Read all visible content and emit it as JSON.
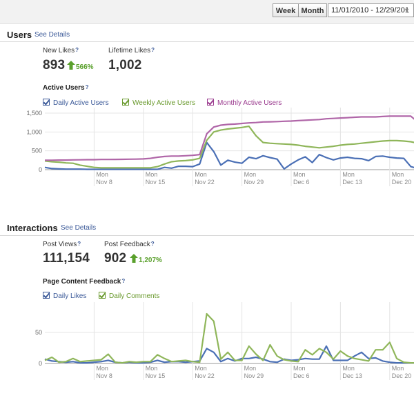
{
  "toolbar": {
    "week_label": "Week",
    "month_label": "Month",
    "date_range": "11/01/2010 - 12/29/201"
  },
  "users": {
    "title": "Users",
    "see_details": "See Details",
    "stats": [
      {
        "label": "New Likes",
        "help": "?",
        "value": "893",
        "change": "566%"
      },
      {
        "label": "Lifetime Likes",
        "help": "?",
        "value": "1,002"
      }
    ],
    "chart_title": "Active Users",
    "chart_help": "?"
  },
  "interactions": {
    "title": "Interactions",
    "see_details": "See Details",
    "stats": [
      {
        "label": "Post Views",
        "help": "?",
        "value": "111,154"
      },
      {
        "label": "Post Feedback",
        "help": "?",
        "value": "902",
        "change": "1,207%"
      }
    ],
    "chart_title": "Page Content Feedback",
    "chart_help": "?"
  },
  "colors": {
    "blue": "#4a6fb5",
    "green": "#8fb65a",
    "purple": "#b066a8",
    "link": "#3b5998",
    "up_green": "#5aa02c"
  },
  "chart_data": [
    {
      "type": "line",
      "title": "Active Users",
      "xlabel": "",
      "ylabel": "",
      "ylim": [
        0,
        1500
      ],
      "y_ticks": [
        "0",
        "500",
        "1,000",
        "1,500"
      ],
      "grid": true,
      "legend": "top-left",
      "x_tick_labels": [
        {
          "day": "Mon",
          "date": "Nov 8"
        },
        {
          "day": "Mon",
          "date": "Nov 15"
        },
        {
          "day": "Mon",
          "date": "Nov 22"
        },
        {
          "day": "Mon",
          "date": "Nov 29"
        },
        {
          "day": "Mon",
          "date": "Dec 6"
        },
        {
          "day": "Mon",
          "date": "Dec 13"
        },
        {
          "day": "Mon",
          "date": "Dec 20"
        }
      ],
      "x_start_date": "2010-11-01",
      "series": [
        {
          "name": "Daily Active Users",
          "color": "#4a6fb5",
          "values": [
            60,
            30,
            20,
            15,
            15,
            15,
            10,
            10,
            10,
            10,
            10,
            10,
            10,
            10,
            10,
            10,
            10,
            60,
            40,
            90,
            90,
            80,
            150,
            720,
            480,
            120,
            250,
            200,
            170,
            330,
            290,
            370,
            320,
            280,
            20,
            150,
            260,
            340,
            190,
            400,
            320,
            260,
            310,
            330,
            300,
            290,
            240,
            350,
            360,
            330,
            310,
            300,
            80,
            30
          ]
        },
        {
          "name": "Weekly Active Users",
          "color": "#8fb65a",
          "values": [
            230,
            210,
            200,
            180,
            170,
            120,
            90,
            60,
            50,
            50,
            50,
            50,
            50,
            50,
            50,
            50,
            80,
            150,
            210,
            230,
            240,
            260,
            300,
            780,
            1000,
            1050,
            1080,
            1100,
            1120,
            1150,
            900,
            720,
            700,
            690,
            680,
            670,
            650,
            620,
            600,
            580,
            600,
            620,
            650,
            670,
            680,
            700,
            720,
            740,
            760,
            770,
            770,
            760,
            740,
            700
          ]
        },
        {
          "name": "Monthly Active Users",
          "color": "#b066a8",
          "values": [
            250,
            250,
            255,
            255,
            260,
            262,
            265,
            265,
            270,
            270,
            272,
            275,
            278,
            280,
            285,
            300,
            330,
            350,
            360,
            360,
            370,
            380,
            400,
            950,
            1130,
            1180,
            1200,
            1210,
            1225,
            1240,
            1250,
            1265,
            1270,
            1275,
            1285,
            1290,
            1300,
            1310,
            1320,
            1330,
            1350,
            1360,
            1370,
            1380,
            1390,
            1400,
            1400,
            1400,
            1410,
            1420,
            1420,
            1420,
            1420,
            1260
          ]
        }
      ]
    },
    {
      "type": "line",
      "title": "Page Content Feedback",
      "xlabel": "",
      "ylabel": "",
      "ylim": [
        0,
        90
      ],
      "y_ticks": [
        "0",
        "50"
      ],
      "grid": true,
      "legend": "top-left",
      "x_tick_labels": [
        {
          "day": "Mon",
          "date": "Nov 8"
        },
        {
          "day": "Mon",
          "date": "Nov 15"
        },
        {
          "day": "Mon",
          "date": "Nov 22"
        },
        {
          "day": "Mon",
          "date": "Nov 29"
        },
        {
          "day": "Mon",
          "date": "Dec 6"
        },
        {
          "day": "Mon",
          "date": "Dec 13"
        },
        {
          "day": "Mon",
          "date": "Dec 20"
        }
      ],
      "x_start_date": "2010-11-01",
      "series": [
        {
          "name": "Daily Likes",
          "color": "#4a6fb5",
          "values": [
            7,
            4,
            3,
            2,
            3,
            1,
            1,
            2,
            3,
            5,
            2,
            1,
            2,
            1,
            1,
            2,
            5,
            2,
            3,
            3,
            2,
            3,
            4,
            24,
            18,
            3,
            8,
            4,
            8,
            8,
            10,
            7,
            3,
            2,
            7,
            5,
            6,
            8,
            7,
            7,
            28,
            5,
            5,
            5,
            12,
            18,
            8,
            9,
            4,
            2,
            1,
            1,
            1,
            1
          ]
        },
        {
          "name": "Daily Comments",
          "color": "#8fb65a",
          "values": [
            5,
            10,
            2,
            3,
            8,
            3,
            4,
            5,
            6,
            15,
            2,
            1,
            3,
            2,
            3,
            3,
            14,
            8,
            3,
            4,
            5,
            3,
            2,
            80,
            68,
            7,
            18,
            5,
            5,
            28,
            15,
            5,
            30,
            12,
            6,
            4,
            3,
            22,
            14,
            24,
            18,
            7,
            20,
            12,
            8,
            6,
            4,
            22,
            22,
            34,
            8,
            2,
            1,
            1
          ]
        }
      ]
    }
  ]
}
